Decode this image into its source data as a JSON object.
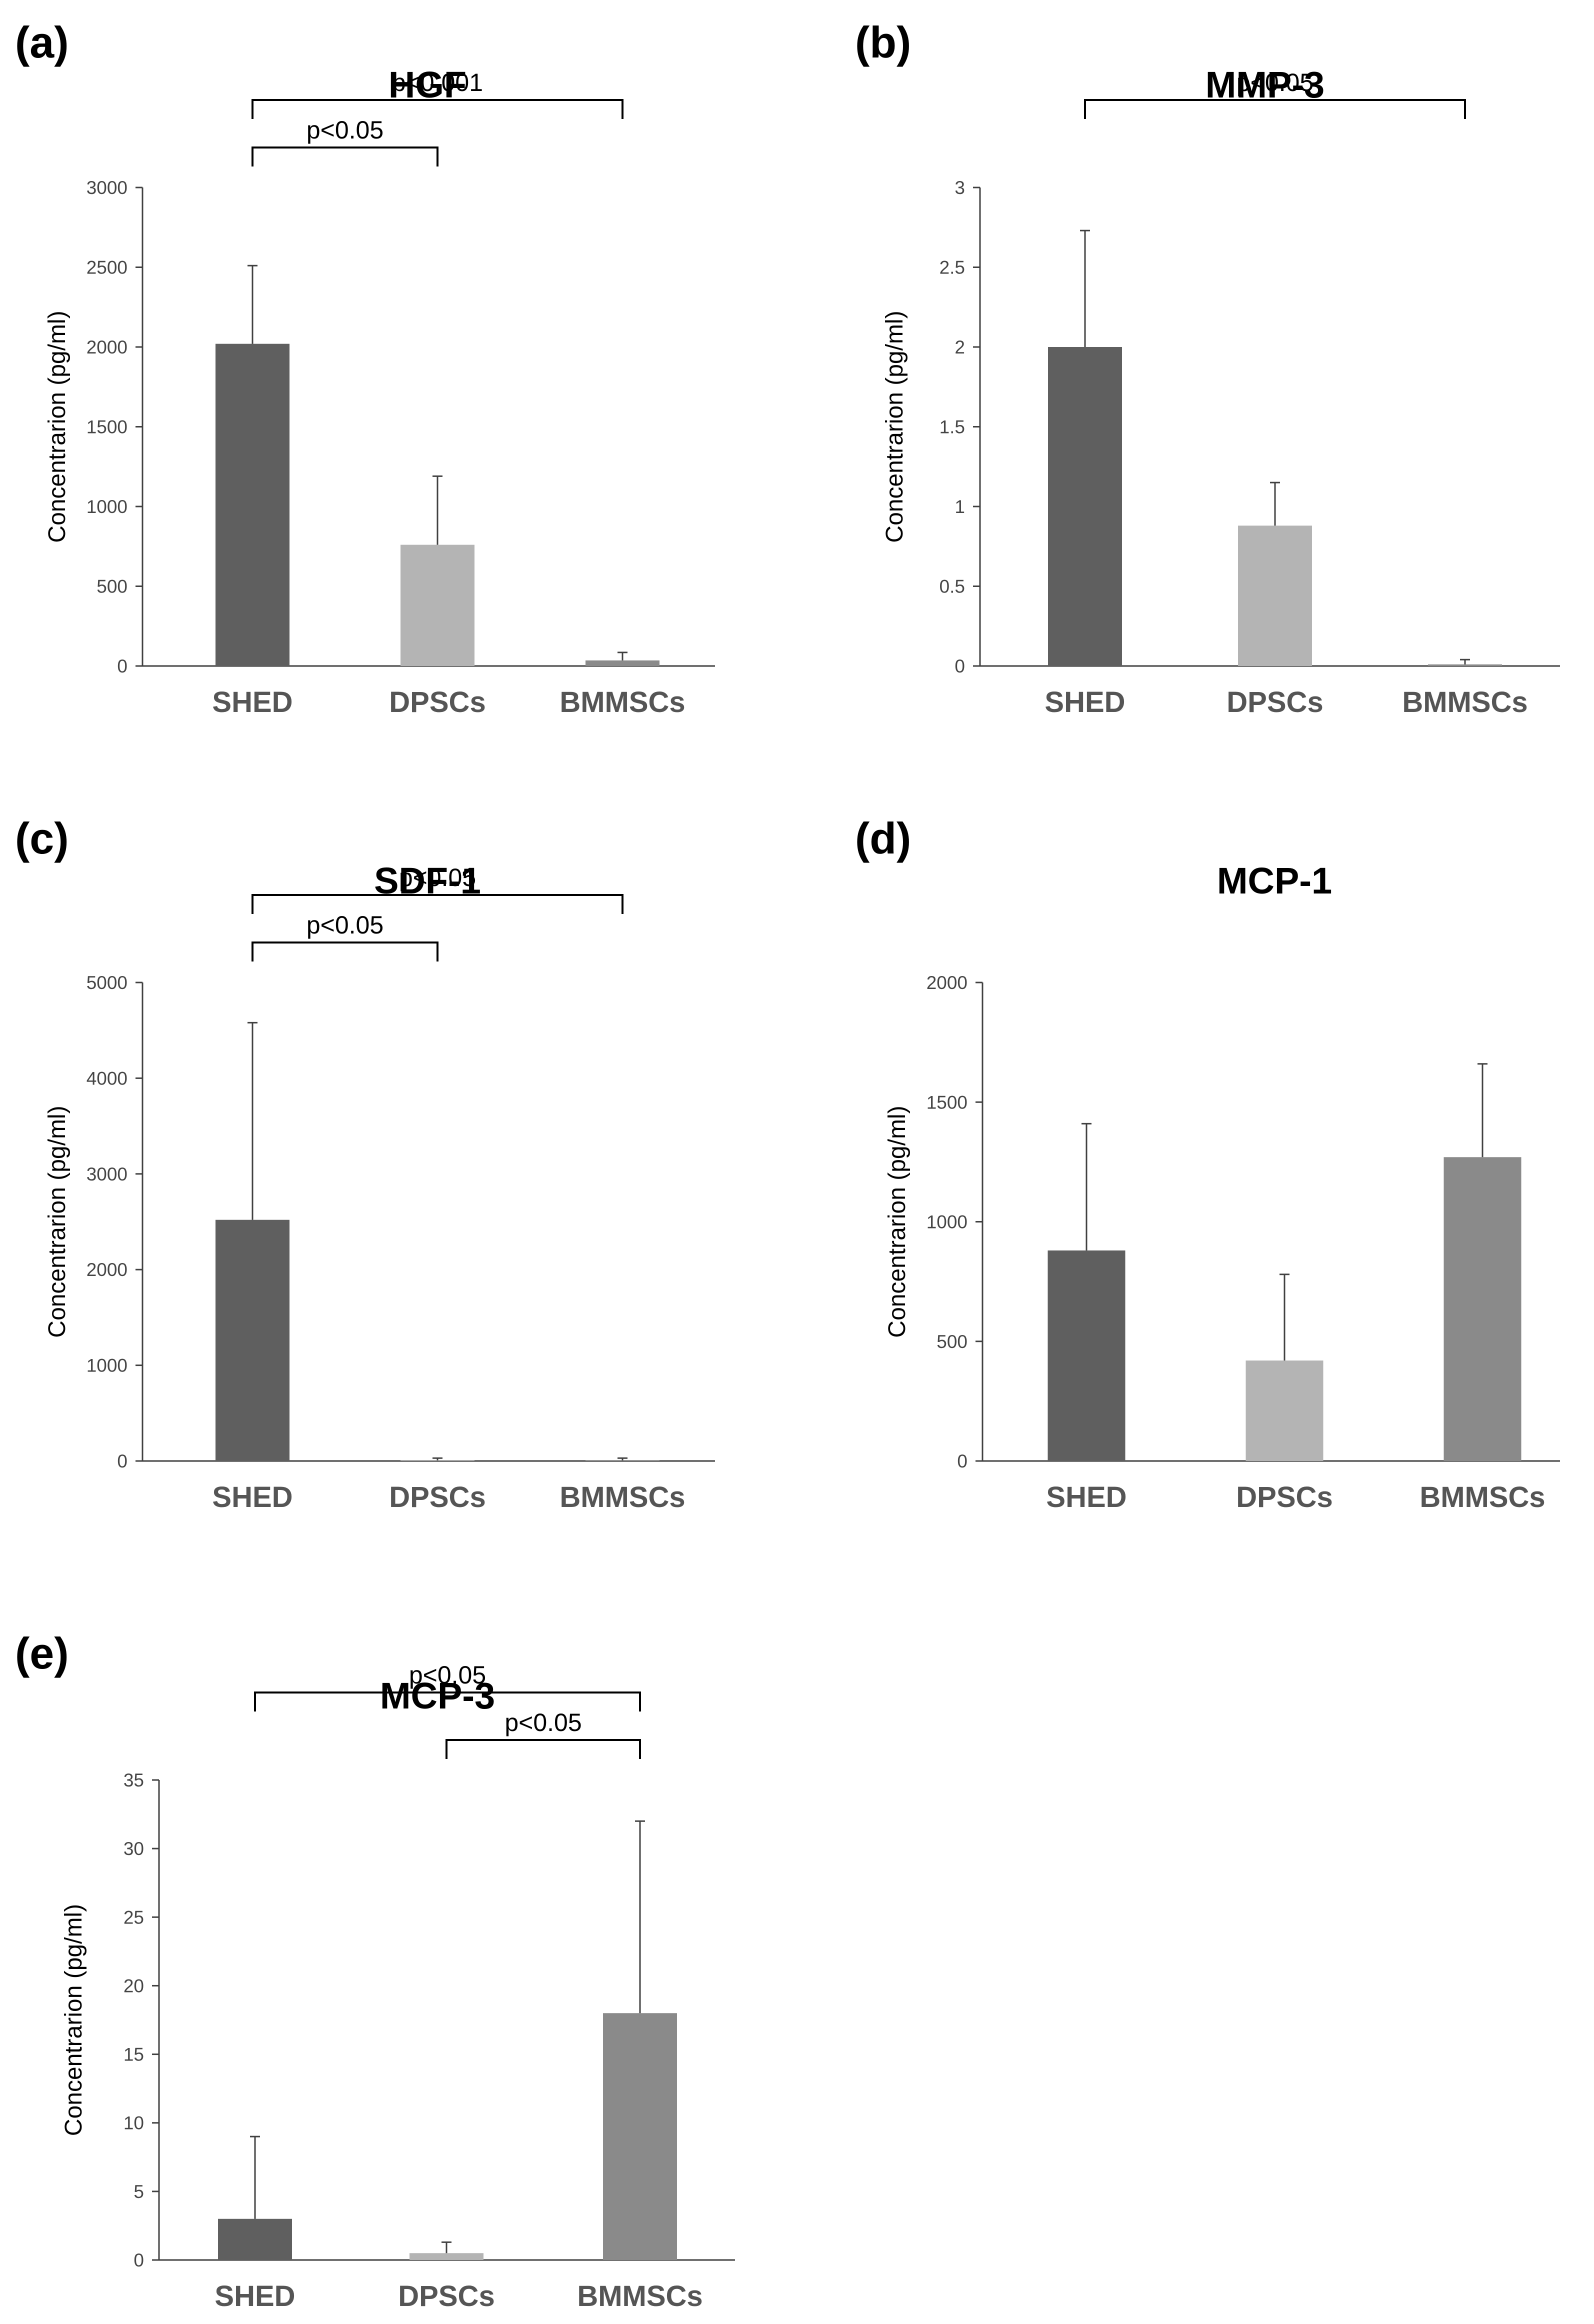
{
  "figure": {
    "colors": {
      "SHED": "#5f5f5f",
      "DPSCs": "#b4b4b4",
      "BMMSCs": "#8a8a8a",
      "axis": "#404040",
      "text": "#000000",
      "tick": "#444444",
      "category": "#555555",
      "background": "#ffffff"
    }
  },
  "chart_data": [
    {
      "panel_label": "(a)",
      "type": "bar",
      "title": "HGF",
      "xlabel": "",
      "ylabel": "Concentrarion (pg/ml)",
      "categories": [
        "SHED",
        "DPSCs",
        "BMMSCs"
      ],
      "values": [
        2020,
        760,
        35
      ],
      "error_bars": [
        490,
        430,
        50
      ],
      "ylim": [
        0,
        3000
      ],
      "yticks": [
        0,
        500,
        1000,
        1500,
        2000,
        2500,
        3000
      ],
      "ytick_labels": [
        "0",
        "500",
        "1000",
        "1500",
        "2000",
        "2500",
        "3000"
      ],
      "significance": [
        {
          "from": "SHED",
          "to": "DPSCs",
          "label": "p<0.05",
          "level": 0
        },
        {
          "from": "SHED",
          "to": "BMMSCs",
          "label": "p<0.001",
          "level": 1
        }
      ],
      "grid": false,
      "legend": "none"
    },
    {
      "panel_label": "(b)",
      "type": "bar",
      "title": "MMP-3",
      "xlabel": "",
      "ylabel": "Concentrarion (pg/ml)",
      "categories": [
        "SHED",
        "DPSCs",
        "BMMSCs"
      ],
      "values": [
        2.0,
        0.88,
        0.01
      ],
      "error_bars": [
        0.73,
        0.27,
        0.03
      ],
      "ylim": [
        0,
        3
      ],
      "yticks": [
        0,
        0.5,
        1,
        1.5,
        2,
        2.5,
        3
      ],
      "ytick_labels": [
        "0",
        "0.5",
        "1",
        "1.5",
        "2",
        "2.5",
        "3"
      ],
      "significance": [
        {
          "from": "SHED",
          "to": "BMMSCs",
          "label": "p<0.05",
          "level": 1
        }
      ],
      "grid": false,
      "legend": "none"
    },
    {
      "panel_label": "(c)",
      "type": "bar",
      "title": "SDF-1",
      "xlabel": "",
      "ylabel": "Concentrarion (pg/ml)",
      "categories": [
        "SHED",
        "DPSCs",
        "BMMSCs"
      ],
      "values": [
        2520,
        5,
        5
      ],
      "error_bars": [
        2060,
        25,
        25
      ],
      "ylim": [
        0,
        5000
      ],
      "yticks": [
        0,
        1000,
        2000,
        3000,
        4000,
        5000
      ],
      "ytick_labels": [
        "0",
        "1000",
        "2000",
        "3000",
        "4000",
        "5000"
      ],
      "significance": [
        {
          "from": "SHED",
          "to": "DPSCs",
          "label": "p<0.05",
          "level": 0
        },
        {
          "from": "SHED",
          "to": "BMMSCs",
          "label": "p<0.05",
          "level": 1
        }
      ],
      "grid": false,
      "legend": "none"
    },
    {
      "panel_label": "(d)",
      "type": "bar",
      "title": "MCP-1",
      "xlabel": "",
      "ylabel": "Concentrarion (pg/ml)",
      "categories": [
        "SHED",
        "DPSCs",
        "BMMSCs"
      ],
      "values": [
        880,
        420,
        1270
      ],
      "error_bars": [
        530,
        360,
        390
      ],
      "ylim": [
        0,
        2000
      ],
      "yticks": [
        0,
        500,
        1000,
        1500,
        2000
      ],
      "ytick_labels": [
        "0",
        "500",
        "1000",
        "1500",
        "2000"
      ],
      "significance": [],
      "grid": false,
      "legend": "none"
    },
    {
      "panel_label": "(e)",
      "type": "bar",
      "title": "MCP-3",
      "xlabel": "",
      "ylabel": "Concentrarion (pg/ml)",
      "categories": [
        "SHED",
        "DPSCs",
        "BMMSCs"
      ],
      "values": [
        3.0,
        0.5,
        18.0
      ],
      "error_bars": [
        6.0,
        0.8,
        14.0
      ],
      "ylim": [
        0,
        35
      ],
      "yticks": [
        0,
        5,
        10,
        15,
        20,
        25,
        30,
        35
      ],
      "ytick_labels": [
        "0",
        "5",
        "10",
        "15",
        "20",
        "25",
        "30",
        "35"
      ],
      "significance": [
        {
          "from": "DPSCs",
          "to": "BMMSCs",
          "label": "p<0.05",
          "level": 0
        },
        {
          "from": "SHED",
          "to": "BMMSCs",
          "label": "p<0.05",
          "level": 1
        }
      ],
      "grid": false,
      "legend": "none"
    }
  ]
}
